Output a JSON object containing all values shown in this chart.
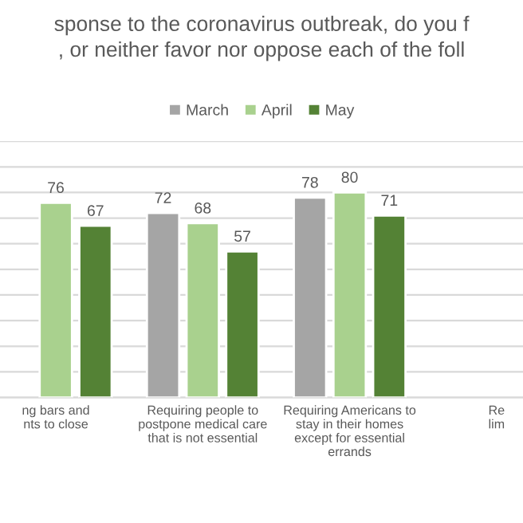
{
  "chart_data": {
    "type": "bar",
    "title": "sponse to the coronavirus outbreak, do you f\n, or neither favor nor oppose each of the foll",
    "categories": [
      "ng bars and\nnts to close",
      "Requiring people to\npostpone medical care\nthat is not essential",
      "Requiring Americans to\nstay in their homes\nexcept for essential\nerrands",
      "Re\nlim"
    ],
    "series": [
      {
        "name": "March",
        "color": "#a5a5a5",
        "values": [
          null,
          72,
          78,
          null
        ]
      },
      {
        "name": "April",
        "color": "#a9d18e",
        "values": [
          76,
          68,
          80,
          null
        ]
      },
      {
        "name": "May",
        "color": "#548235",
        "values": [
          67,
          57,
          71,
          null
        ]
      }
    ],
    "ylim": [
      0,
      100
    ],
    "yticks": [
      {
        "value": 0,
        "label": null
      },
      {
        "value": 10,
        "label": null
      },
      {
        "value": 20,
        "label": null
      },
      {
        "value": 30,
        "label": null
      },
      {
        "value": 40,
        "label": null
      },
      {
        "value": 50,
        "label": null
      },
      {
        "value": 60,
        "label": null
      },
      {
        "value": 70,
        "label": null
      },
      {
        "value": 80,
        "label": null
      },
      {
        "value": 90,
        "label": null
      },
      {
        "value": 100,
        "label": null
      }
    ],
    "grid": "y",
    "legend": "top",
    "data_labels": true,
    "tick_labels": "x"
  }
}
